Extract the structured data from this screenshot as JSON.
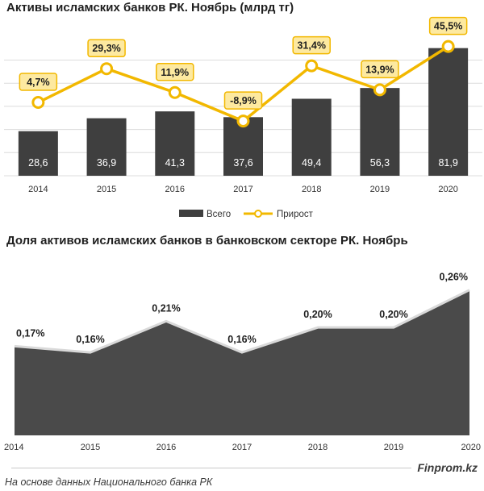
{
  "chart_data": [
    {
      "type": "bar",
      "title": "Активы исламских банков РК. Ноябрь (млрд тг)",
      "categories": [
        "2014",
        "2015",
        "2016",
        "2017",
        "2018",
        "2019",
        "2020"
      ],
      "series": [
        {
          "name": "Всего",
          "type": "bar",
          "values": [
            28.6,
            36.9,
            41.3,
            37.6,
            49.4,
            56.3,
            81.9
          ],
          "labels": [
            "28,6",
            "36,9",
            "41,3",
            "37,6",
            "49,4",
            "56,3",
            "81,9"
          ],
          "color": "#3f3f3f"
        },
        {
          "name": "Прирост",
          "type": "line",
          "values": [
            4.7,
            29.3,
            11.9,
            -8.9,
            31.4,
            13.9,
            45.5
          ],
          "labels": [
            "4,7%",
            "29,3%",
            "11,9%",
            "-8,9%",
            "31,4%",
            "13,9%",
            "45,5%"
          ],
          "color": "#f2b800"
        }
      ],
      "ylim": [
        0,
        90
      ],
      "grid": true,
      "legend_position": "bottom"
    },
    {
      "type": "area",
      "title": "Доля активов исламских банков в банковском секторе РК. Ноябрь",
      "x": [
        "2014",
        "2015",
        "2016",
        "2017",
        "2018",
        "2019",
        "2020"
      ],
      "values": [
        0.17,
        0.16,
        0.21,
        0.16,
        0.2,
        0.2,
        0.26
      ],
      "labels": [
        "0,17%",
        "0,16%",
        "0,21%",
        "0,16%",
        "0,20%",
        "0,20%",
        "0,26%"
      ],
      "color": "#4a4a4a",
      "ylim": [
        0,
        0.26
      ]
    }
  ],
  "footer": {
    "brand": "Finprom.kz",
    "source": "На основе данных  Национального  банка РК"
  }
}
